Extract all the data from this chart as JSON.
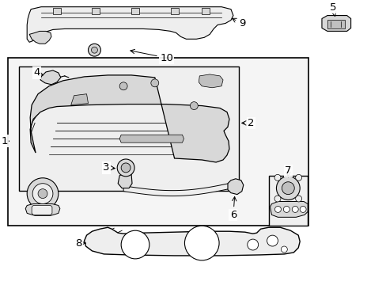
{
  "bg_color": "#ffffff",
  "fig_width": 4.89,
  "fig_height": 3.6,
  "dpi": 100,
  "lc": "#000000",
  "gray1": "#d8d8d8",
  "gray2": "#eeeeee",
  "gray3": "#c0c0c0",
  "white": "#ffffff"
}
